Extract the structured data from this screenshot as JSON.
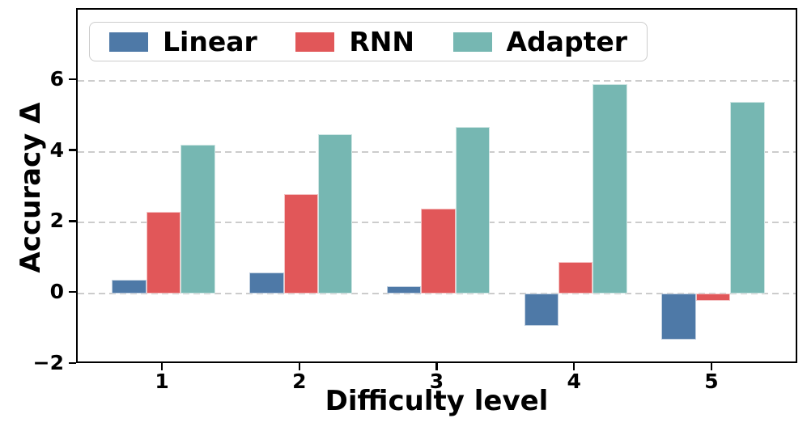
{
  "chart_data": {
    "type": "bar",
    "title": "",
    "xlabel": "Difficulty level",
    "ylabel": "Accuracy Δ",
    "categories": [
      "1",
      "2",
      "3",
      "4",
      "5"
    ],
    "series": [
      {
        "name": "Linear",
        "color": "#4E79A7",
        "values": [
          0.4,
          0.6,
          0.2,
          -0.9,
          -1.3
        ]
      },
      {
        "name": "RNN",
        "color": "#E15759",
        "values": [
          2.3,
          2.8,
          2.4,
          0.9,
          -0.2
        ]
      },
      {
        "name": "Adapter",
        "color": "#76B7B2",
        "values": [
          4.2,
          4.5,
          4.7,
          5.9,
          5.4
        ]
      }
    ],
    "ylim": [
      -2,
      8
    ],
    "ytick_values": [
      -2,
      0,
      2,
      4,
      6
    ],
    "ytick_labels": [
      "−2",
      "0",
      "2",
      "4",
      "6"
    ],
    "grid": "horizontal dashed",
    "legend_position": "top inside, horizontal"
  },
  "style": {
    "background": "#ffffff",
    "axis_color": "#000000",
    "grid_color": "#cccccc",
    "legend_border_color": "#cccccc",
    "bar_edge_color": "#ffffff"
  }
}
